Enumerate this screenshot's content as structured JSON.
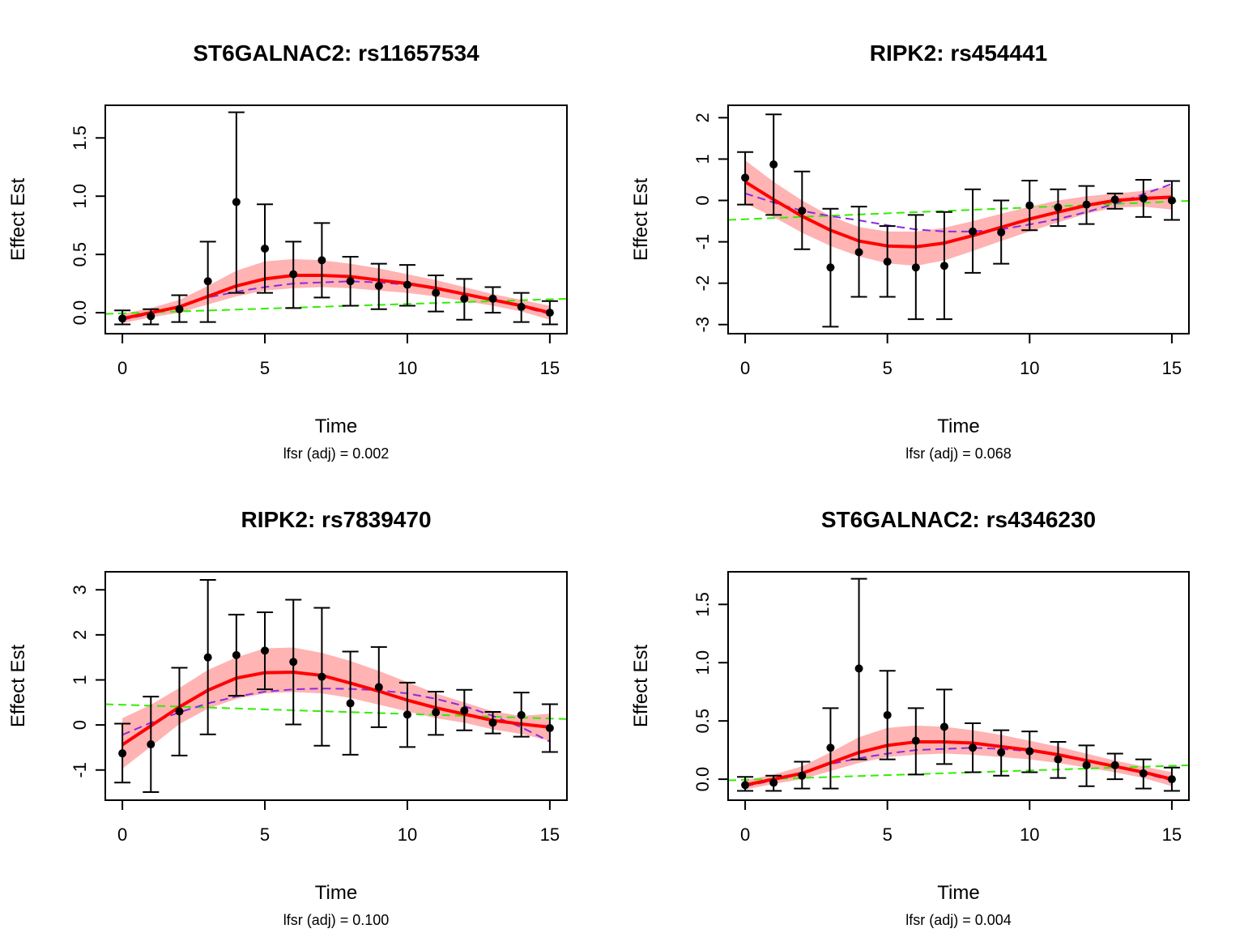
{
  "chart_data": [
    {
      "type": "line",
      "title": "ST6GALNAC2: rs11657534",
      "xlabel": "Time",
      "ylabel": "Effect Est",
      "subtitle": "lfsr (adj) = 0.002",
      "xlim": [
        -0.6,
        15.6
      ],
      "ylim": [
        -0.18,
        1.78
      ],
      "xticks": [
        0,
        5,
        10,
        15
      ],
      "xtick_labels": [
        "0",
        "5",
        "10",
        "15"
      ],
      "yticks": [
        0.0,
        0.5,
        1.0,
        1.5
      ],
      "ytick_labels": [
        "0.0",
        "0.5",
        "1.0",
        "1.5"
      ],
      "x": [
        0,
        1,
        2,
        3,
        4,
        5,
        6,
        7,
        8,
        9,
        10,
        11,
        12,
        13,
        14,
        15
      ],
      "points": [
        -0.05,
        -0.03,
        0.03,
        0.27,
        0.95,
        0.55,
        0.33,
        0.45,
        0.27,
        0.23,
        0.24,
        0.17,
        0.12,
        0.12,
        0.05,
        0.0
      ],
      "err_upper": [
        0.02,
        0.03,
        0.15,
        0.61,
        1.72,
        0.93,
        0.61,
        0.77,
        0.48,
        0.42,
        0.41,
        0.32,
        0.29,
        0.22,
        0.17,
        0.1
      ],
      "err_lower": [
        -0.1,
        -0.1,
        -0.08,
        -0.08,
        0.17,
        0.17,
        0.04,
        0.13,
        0.06,
        0.03,
        0.06,
        0.01,
        -0.06,
        0.0,
        -0.08,
        -0.1
      ],
      "fit": [
        -0.05,
        0.0,
        0.05,
        0.14,
        0.23,
        0.29,
        0.32,
        0.32,
        0.31,
        0.28,
        0.25,
        0.21,
        0.16,
        0.11,
        0.06,
        0.0
      ],
      "band_upper": [
        -0.01,
        0.04,
        0.11,
        0.23,
        0.36,
        0.44,
        0.46,
        0.45,
        0.42,
        0.38,
        0.33,
        0.28,
        0.22,
        0.16,
        0.11,
        0.06
      ],
      "band_lower": [
        -0.09,
        -0.04,
        0.0,
        0.07,
        0.14,
        0.19,
        0.21,
        0.22,
        0.21,
        0.19,
        0.17,
        0.14,
        0.1,
        0.06,
        0.01,
        -0.06
      ],
      "dashed_purple": [
        -0.06,
        -0.01,
        0.06,
        0.13,
        0.18,
        0.22,
        0.25,
        0.26,
        0.27,
        0.26,
        0.24,
        0.21,
        0.16,
        0.11,
        0.05,
        -0.01
      ],
      "dashed_green_endpoints": [
        [
          -0.6,
          -0.01
        ],
        [
          15.6,
          0.12
        ]
      ],
      "colors": {
        "fit": "#ff0000",
        "band": "#ffb3b3",
        "purple": "#8a2be2",
        "green": "#33ee00",
        "points": "#000000"
      }
    },
    {
      "type": "line",
      "title": "RIPK2: rs454441",
      "xlabel": "Time",
      "ylabel": "Effect Est",
      "subtitle": "lfsr (adj) = 0.068",
      "xlim": [
        -0.6,
        15.6
      ],
      "ylim": [
        -3.22,
        2.3
      ],
      "xticks": [
        0,
        5,
        10,
        15
      ],
      "xtick_labels": [
        "0",
        "5",
        "10",
        "15"
      ],
      "yticks": [
        -3,
        -2,
        -1,
        0,
        1,
        2
      ],
      "ytick_labels": [
        "-3",
        "-2",
        "-1",
        "0",
        "1",
        "2"
      ],
      "x": [
        0,
        1,
        2,
        3,
        4,
        5,
        6,
        7,
        8,
        9,
        10,
        11,
        12,
        13,
        14,
        15
      ],
      "points": [
        0.55,
        0.87,
        -0.25,
        -1.62,
        -1.25,
        -1.48,
        -1.62,
        -1.58,
        -0.75,
        -0.77,
        -0.12,
        -0.17,
        -0.1,
        0.02,
        0.05,
        0.0
      ],
      "err_upper": [
        1.17,
        2.08,
        0.7,
        -0.2,
        -0.15,
        -0.62,
        -0.35,
        -0.28,
        0.27,
        0.0,
        0.48,
        0.27,
        0.35,
        0.17,
        0.5,
        0.47
      ],
      "err_lower": [
        -0.1,
        -0.35,
        -1.18,
        -3.05,
        -2.33,
        -2.33,
        -2.87,
        -2.87,
        -1.75,
        -1.53,
        -0.72,
        -0.62,
        -0.57,
        -0.2,
        -0.4,
        -0.47
      ],
      "fit": [
        0.45,
        0.02,
        -0.38,
        -0.72,
        -0.98,
        -1.1,
        -1.12,
        -1.03,
        -0.85,
        -0.65,
        -0.45,
        -0.28,
        -0.12,
        0.0,
        0.05,
        0.08
      ],
      "band_upper": [
        0.97,
        0.45,
        0.0,
        -0.38,
        -0.64,
        -0.75,
        -0.75,
        -0.66,
        -0.5,
        -0.32,
        -0.15,
        0.0,
        0.1,
        0.17,
        0.23,
        0.35
      ],
      "band_lower": [
        -0.07,
        -0.4,
        -0.78,
        -1.1,
        -1.35,
        -1.52,
        -1.58,
        -1.45,
        -1.22,
        -0.98,
        -0.75,
        -0.53,
        -0.32,
        -0.17,
        -0.15,
        -0.22
      ],
      "dashed_purple": [
        0.17,
        -0.05,
        -0.25,
        -0.38,
        -0.48,
        -0.6,
        -0.7,
        -0.75,
        -0.75,
        -0.7,
        -0.58,
        -0.45,
        -0.28,
        -0.08,
        0.15,
        0.4
      ],
      "dashed_green_endpoints": [
        [
          -0.6,
          -0.47
        ],
        [
          15.6,
          -0.01
        ]
      ],
      "colors": {
        "fit": "#ff0000",
        "band": "#ffb3b3",
        "purple": "#8a2be2",
        "green": "#33ee00",
        "points": "#000000"
      }
    },
    {
      "type": "line",
      "title": "RIPK2: rs7839470",
      "xlabel": "Time",
      "ylabel": "Effect Est",
      "subtitle": "lfsr (adj) = 0.100",
      "xlim": [
        -0.6,
        15.6
      ],
      "ylim": [
        -1.67,
        3.4
      ],
      "xticks": [
        0,
        5,
        10,
        15
      ],
      "xtick_labels": [
        "0",
        "5",
        "10",
        "15"
      ],
      "yticks": [
        -1,
        0,
        1,
        2,
        3
      ],
      "ytick_labels": [
        "-1",
        "0",
        "1",
        "2",
        "3"
      ],
      "x": [
        0,
        1,
        2,
        3,
        4,
        5,
        6,
        7,
        8,
        9,
        10,
        11,
        12,
        13,
        14,
        15
      ],
      "points": [
        -0.63,
        -0.43,
        0.3,
        1.5,
        1.55,
        1.65,
        1.4,
        1.07,
        0.48,
        0.84,
        0.23,
        0.28,
        0.32,
        0.05,
        0.22,
        -0.07
      ],
      "err_upper": [
        0.03,
        0.63,
        1.27,
        3.22,
        2.45,
        2.5,
        2.78,
        2.6,
        1.63,
        1.73,
        0.94,
        0.74,
        0.78,
        0.29,
        0.72,
        0.46
      ],
      "err_lower": [
        -1.28,
        -1.49,
        -0.68,
        -0.21,
        0.65,
        0.79,
        0.01,
        -0.46,
        -0.66,
        -0.05,
        -0.49,
        -0.22,
        -0.12,
        -0.19,
        -0.26,
        -0.6
      ],
      "fit": [
        -0.44,
        -0.02,
        0.4,
        0.77,
        1.04,
        1.16,
        1.17,
        1.1,
        0.93,
        0.75,
        0.55,
        0.38,
        0.24,
        0.1,
        0.02,
        -0.05
      ],
      "band_upper": [
        0.15,
        0.45,
        0.82,
        1.22,
        1.5,
        1.7,
        1.72,
        1.6,
        1.42,
        1.2,
        0.95,
        0.7,
        0.5,
        0.3,
        0.2,
        0.25
      ],
      "band_lower": [
        -0.97,
        -0.48,
        0.02,
        0.36,
        0.58,
        0.7,
        0.73,
        0.7,
        0.6,
        0.45,
        0.3,
        0.15,
        0.05,
        -0.1,
        -0.2,
        -0.35
      ],
      "dashed_purple": [
        -0.22,
        0.05,
        0.28,
        0.48,
        0.63,
        0.74,
        0.79,
        0.81,
        0.8,
        0.77,
        0.7,
        0.58,
        0.42,
        0.2,
        -0.05,
        -0.37
      ],
      "dashed_green_endpoints": [
        [
          -0.6,
          0.46
        ],
        [
          15.6,
          0.13
        ]
      ],
      "colors": {
        "fit": "#ff0000",
        "band": "#ffb3b3",
        "purple": "#8a2be2",
        "green": "#33ee00",
        "points": "#000000"
      }
    },
    {
      "type": "line",
      "title": "ST6GALNAC2: rs4346230",
      "xlabel": "Time",
      "ylabel": "Effect Est",
      "subtitle": "lfsr (adj) = 0.004",
      "xlim": [
        -0.6,
        15.6
      ],
      "ylim": [
        -0.18,
        1.78
      ],
      "xticks": [
        0,
        5,
        10,
        15
      ],
      "xtick_labels": [
        "0",
        "5",
        "10",
        "15"
      ],
      "yticks": [
        0.0,
        0.5,
        1.0,
        1.5
      ],
      "ytick_labels": [
        "0.0",
        "0.5",
        "1.0",
        "1.5"
      ],
      "x": [
        0,
        1,
        2,
        3,
        4,
        5,
        6,
        7,
        8,
        9,
        10,
        11,
        12,
        13,
        14,
        15
      ],
      "points": [
        -0.05,
        -0.03,
        0.03,
        0.27,
        0.95,
        0.55,
        0.33,
        0.45,
        0.27,
        0.23,
        0.24,
        0.17,
        0.12,
        0.12,
        0.05,
        0.0
      ],
      "err_upper": [
        0.02,
        0.03,
        0.15,
        0.61,
        1.72,
        0.93,
        0.61,
        0.77,
        0.48,
        0.42,
        0.41,
        0.32,
        0.29,
        0.22,
        0.17,
        0.1
      ],
      "err_lower": [
        -0.1,
        -0.1,
        -0.08,
        -0.08,
        0.17,
        0.17,
        0.04,
        0.13,
        0.06,
        0.03,
        0.06,
        0.01,
        -0.06,
        0.0,
        -0.08,
        -0.1
      ],
      "fit": [
        -0.05,
        0.0,
        0.05,
        0.14,
        0.23,
        0.29,
        0.32,
        0.32,
        0.31,
        0.28,
        0.25,
        0.21,
        0.16,
        0.11,
        0.06,
        0.0
      ],
      "band_upper": [
        -0.01,
        0.04,
        0.11,
        0.23,
        0.36,
        0.44,
        0.46,
        0.45,
        0.42,
        0.38,
        0.33,
        0.28,
        0.22,
        0.16,
        0.11,
        0.06
      ],
      "band_lower": [
        -0.09,
        -0.04,
        0.0,
        0.07,
        0.14,
        0.19,
        0.21,
        0.22,
        0.21,
        0.19,
        0.17,
        0.14,
        0.1,
        0.06,
        0.01,
        -0.06
      ],
      "dashed_purple": [
        -0.06,
        -0.01,
        0.06,
        0.13,
        0.18,
        0.22,
        0.25,
        0.26,
        0.27,
        0.26,
        0.24,
        0.21,
        0.16,
        0.11,
        0.05,
        -0.01
      ],
      "dashed_green_endpoints": [
        [
          -0.6,
          -0.01
        ],
        [
          15.6,
          0.12
        ]
      ],
      "colors": {
        "fit": "#ff0000",
        "band": "#ffb3b3",
        "purple": "#8a2be2",
        "green": "#33ee00",
        "points": "#000000"
      }
    }
  ]
}
